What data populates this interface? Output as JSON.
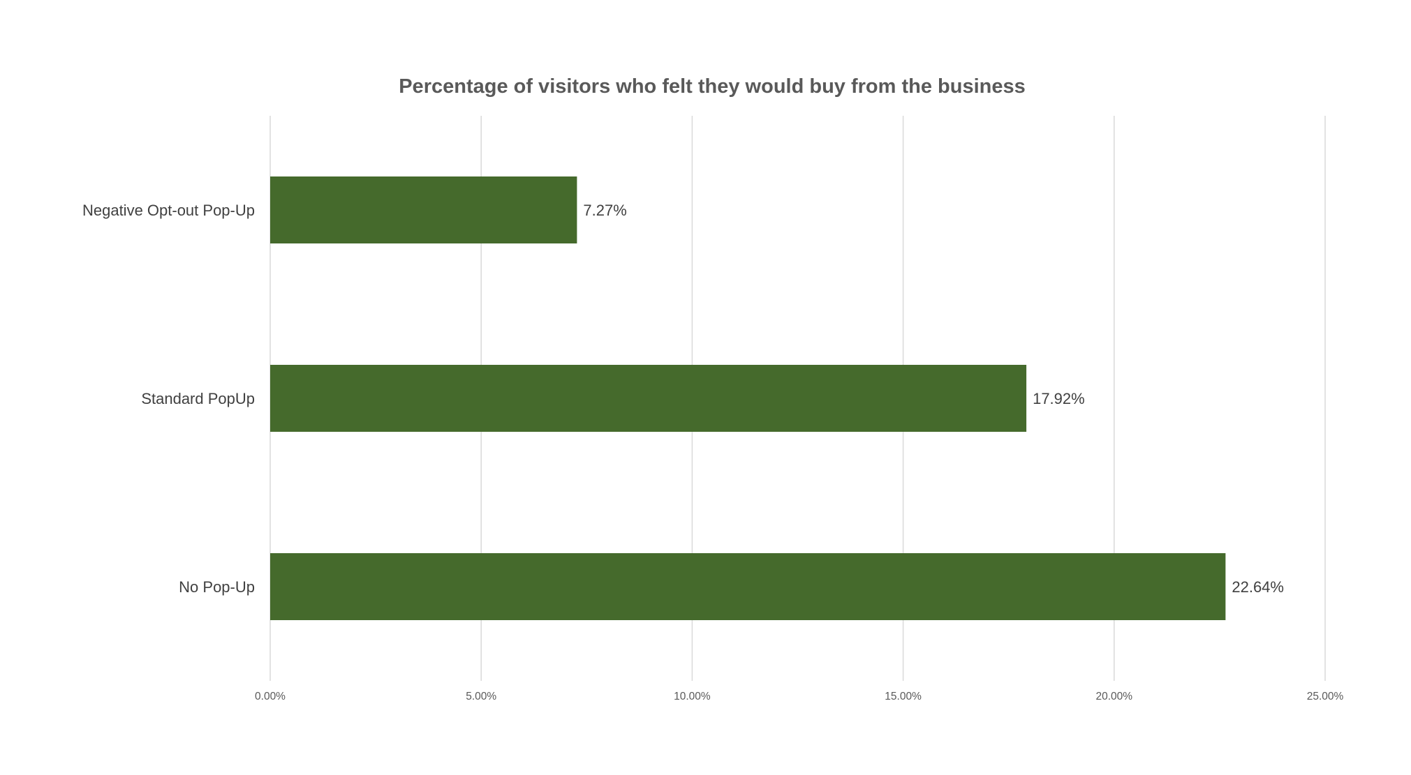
{
  "chart_data": {
    "type": "bar",
    "orientation": "horizontal",
    "title": "Percentage of visitors who felt they would buy from the business",
    "categories": [
      "Negative Opt-out Pop-Up",
      "Standard PopUp",
      "No Pop-Up"
    ],
    "values": [
      7.27,
      17.92,
      22.64
    ],
    "data_labels": [
      "7.27%",
      "17.92%",
      "22.64%"
    ],
    "xlim": [
      0,
      25
    ],
    "xticks": [
      0,
      5,
      10,
      15,
      20,
      25
    ],
    "xtick_labels": [
      "0.00%",
      "5.00%",
      "10.00%",
      "15.00%",
      "20.00%",
      "25.00%"
    ],
    "xlabel": "",
    "ylabel": "",
    "grid": "vertical",
    "legend": "none",
    "bar_color": "#456A2C"
  }
}
